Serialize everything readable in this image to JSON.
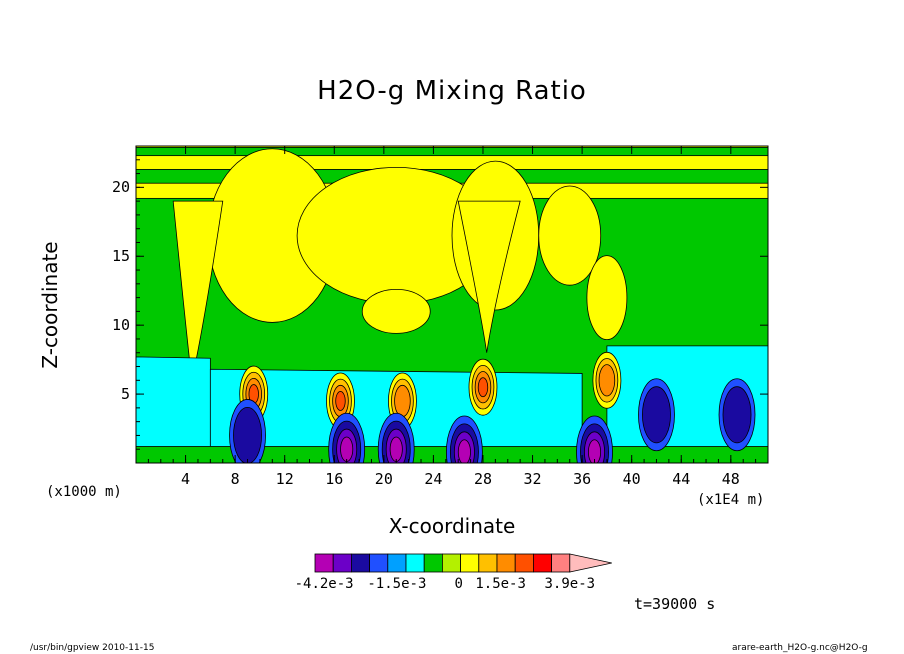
{
  "chart_data": {
    "type": "heatmap",
    "title": "H2O-g Mixing Ratio",
    "xlabel": "X-coordinate",
    "ylabel": "Z-coordinate",
    "x_unit": "(x1E4 m)",
    "y_unit": "(x1000 m)",
    "x_range": [
      0,
      51
    ],
    "y_range": [
      0,
      23
    ],
    "x_ticks": [
      4,
      8,
      12,
      16,
      20,
      24,
      28,
      32,
      36,
      40,
      44,
      48
    ],
    "y_ticks": [
      5,
      10,
      15,
      20
    ],
    "colorbar": {
      "ticks": [
        "-4.2e-3",
        "-1.5e-3",
        "0",
        "1.5e-3",
        "3.9e-3"
      ],
      "colors": [
        "#b400b4",
        "#6c00c8",
        "#1a0aa0",
        "#2050ff",
        "#00a0ff",
        "#00ffff",
        "#00c800",
        "#b4f000",
        "#ffff00",
        "#ffc000",
        "#ff8c00",
        "#ff5000",
        "#ff0000",
        "#ff8080",
        "#ffbcbc"
      ]
    },
    "time_label": "t=39000 s",
    "background_color": "#00c800",
    "features": [
      {
        "x": 9.5,
        "z": 5.0,
        "level": "positive-strong"
      },
      {
        "x": 16.5,
        "z": 4.5,
        "level": "positive-strong"
      },
      {
        "x": 21.5,
        "z": 4.5,
        "level": "positive"
      },
      {
        "x": 28.0,
        "z": 5.5,
        "level": "positive-strong"
      },
      {
        "x": 38.0,
        "z": 6.0,
        "level": "positive"
      },
      {
        "x": 9.0,
        "z": 2.0,
        "level": "negative"
      },
      {
        "x": 17.0,
        "z": 1.0,
        "level": "negative-strong"
      },
      {
        "x": 21.0,
        "z": 1.0,
        "level": "negative-strong"
      },
      {
        "x": 26.5,
        "z": 0.8,
        "level": "negative-strong"
      },
      {
        "x": 37.0,
        "z": 0.8,
        "level": "negative-strong"
      },
      {
        "x": 42.0,
        "z": 3.5,
        "level": "negative"
      },
      {
        "x": 48.5,
        "z": 3.5,
        "level": "negative"
      }
    ]
  },
  "footer": {
    "left": "/usr/bin/gpview  2010-11-15",
    "right": "arare-earth_H2O-g.nc@H2O-g"
  }
}
